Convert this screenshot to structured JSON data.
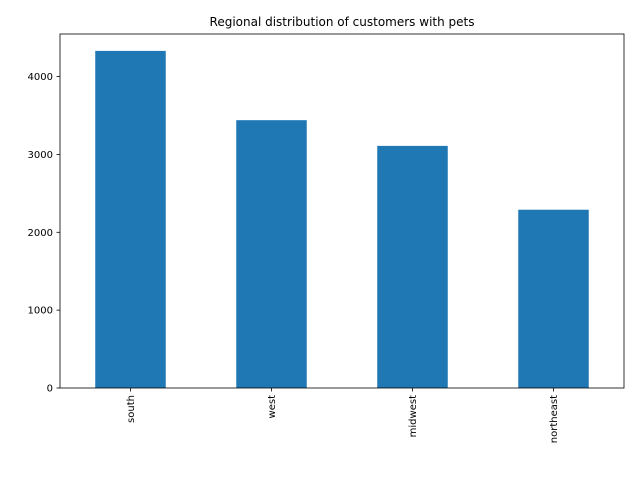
{
  "chart_data": {
    "type": "bar",
    "title": "Regional distribution of customers with pets",
    "xlabel": "",
    "ylabel": "",
    "categories": [
      "south",
      "west",
      "midwest",
      "northeast"
    ],
    "values": [
      4330,
      3440,
      3110,
      2290
    ],
    "ylim": [
      0,
      4547
    ],
    "yticks": [
      0,
      1000,
      2000,
      3000,
      4000
    ],
    "grid": false,
    "legend": "none",
    "bar_color": "#1f77b4"
  }
}
